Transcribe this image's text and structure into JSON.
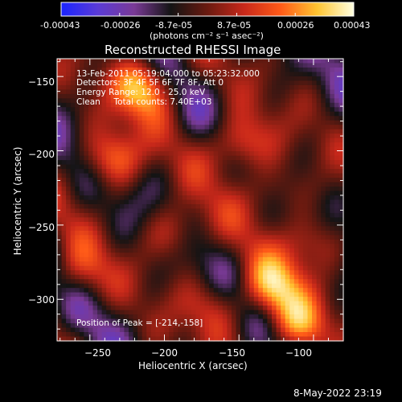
{
  "colors": {
    "background": "#000000",
    "text": "#ffffff",
    "colormap": [
      "#1a24ff",
      "#5a3bd6",
      "#7a3a96",
      "#141414",
      "#6a1a10",
      "#c8281a",
      "#ff5a18",
      "#ffc431",
      "#ffffe0"
    ]
  },
  "colorbar": {
    "tick_labels": [
      "-0.00043",
      "-0.00026",
      "-8.7e-05",
      "8.7e-05",
      "0.00026",
      "0.00043"
    ],
    "unit_label": "(photons cm⁻² s⁻¹ asec⁻²)",
    "range": [
      -0.00043,
      0.00043
    ]
  },
  "chart_data": {
    "type": "heatmap",
    "title": "Reconstructed RHESSI Image",
    "xlabel": "Heliocentric X (arcsec)",
    "ylabel": "Heliocentric Y (arcsec)",
    "xlim": [
      -272,
      -80
    ],
    "ylim": [
      -328,
      -138
    ],
    "x_ticks": [
      -250,
      -200,
      -150,
      -100
    ],
    "y_ticks": [
      -150,
      -200,
      -250,
      -300
    ],
    "x_tick_labels": [
      "−250",
      "−200",
      "−150",
      "−100"
    ],
    "y_tick_labels": [
      "−150",
      "−200",
      "−250",
      "−300"
    ],
    "grid": false,
    "hotspots": [
      {
        "x": -214,
        "y": -158,
        "amplitude": 1.0
      },
      {
        "x": -150,
        "y": -196,
        "amplitude": 0.9
      },
      {
        "x": -235,
        "y": -205,
        "amplitude": 0.85
      },
      {
        "x": -128,
        "y": -292,
        "amplitude": 0.9
      },
      {
        "x": -112,
        "y": -318,
        "amplitude": 0.8
      },
      {
        "x": -192,
        "y": -255,
        "amplitude": 0.6
      },
      {
        "x": -102,
        "y": -262,
        "amplitude": 0.6
      },
      {
        "x": -258,
        "y": -282,
        "amplitude": 0.5
      },
      {
        "x": -168,
        "y": -305,
        "amplitude": 0.45
      },
      {
        "x": -128,
        "y": -228,
        "amplitude": 0.5
      }
    ],
    "annotations": {
      "info_lines": [
        "13-Feb-2011 05:19:04.000 to 05:23:32.000",
        "Detectors: 3F 4F 5F 6F 7F 8F, Att 0",
        "Energy Range: 12.0 - 25.0 keV",
        "Clean     Total counts: 7.40E+03"
      ],
      "peak_label": "Position of Peak = [-214,-158]"
    }
  },
  "footer": {
    "timestamp": "8-May-2022 23:19"
  }
}
